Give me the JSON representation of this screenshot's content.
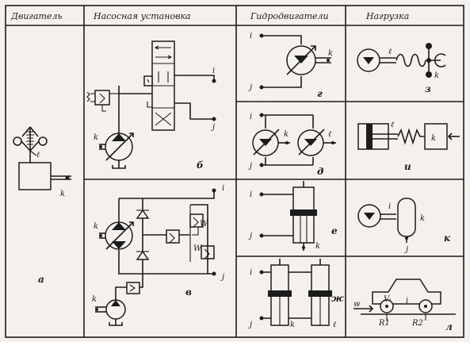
{
  "headers": {
    "engine": "Двигатель",
    "pump_unit": "Насосная установка",
    "hydromotors": "Гидродвигатели",
    "load": "Нагрузка"
  },
  "labels": {
    "i": "i",
    "j": "j",
    "k": "k",
    "l": "ℓ",
    "w": "w",
    "r1": "R1",
    "r2": "R2",
    "vi": "Vᵢ"
  },
  "tags": {
    "a": "а",
    "b": "б",
    "v": "в",
    "g": "г",
    "d": "д",
    "e": "е",
    "zh": "ж",
    "z": "з",
    "i": "и",
    "k": "к",
    "l": "л"
  },
  "colors": {
    "ink": "#1c1c1c",
    "paper": "#f4f1ec"
  }
}
